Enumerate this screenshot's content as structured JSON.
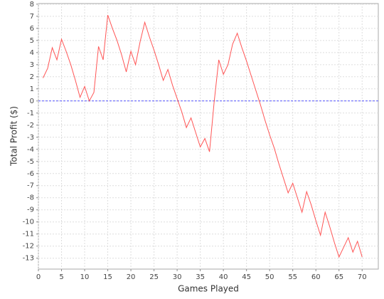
{
  "chart_data": {
    "type": "line",
    "x_label": "Games Played",
    "y_label": "Total Profit ($)",
    "x": [
      1,
      2,
      3,
      4,
      5,
      6,
      7,
      8,
      9,
      10,
      11,
      12,
      13,
      14,
      15,
      16,
      17,
      18,
      19,
      20,
      21,
      22,
      23,
      24,
      25,
      26,
      27,
      28,
      29,
      30,
      31,
      32,
      33,
      34,
      35,
      36,
      37,
      38,
      39,
      40,
      41,
      42,
      43,
      44,
      45,
      46,
      47,
      48,
      49,
      50,
      51,
      52,
      53,
      54,
      55,
      56,
      57,
      58,
      59,
      60,
      61,
      62,
      63,
      64,
      65,
      66,
      67,
      68,
      69,
      70
    ],
    "series": [
      {
        "name": "Total Profit",
        "color": "#ff5555",
        "values": [
          1.9,
          2.7,
          4.4,
          3.4,
          5.1,
          4.1,
          3.0,
          1.7,
          0.3,
          1.2,
          0.0,
          0.7,
          4.5,
          3.4,
          7.1,
          6.0,
          5.0,
          3.8,
          2.4,
          4.1,
          3.0,
          4.9,
          6.5,
          5.3,
          4.2,
          3.0,
          1.7,
          2.6,
          1.3,
          0.2,
          -0.9,
          -2.2,
          -1.4,
          -2.6,
          -3.8,
          -3.1,
          -4.2,
          -0.1,
          3.4,
          2.2,
          3.0,
          4.7,
          5.6,
          4.4,
          3.3,
          2.1,
          0.9,
          -0.3,
          -1.6,
          -2.8,
          -3.9,
          -5.2,
          -6.4,
          -7.6,
          -6.8,
          -8.0,
          -9.2,
          -7.5,
          -8.6,
          -9.9,
          -11.1,
          -9.2,
          -10.4,
          -11.7,
          -12.9,
          -12.1,
          -11.3,
          -12.5,
          -11.6,
          -12.9
        ]
      }
    ],
    "xlim": [
      0,
      73.5
    ],
    "xticks": [
      0,
      5,
      10,
      15,
      20,
      25,
      30,
      35,
      40,
      45,
      50,
      55,
      60,
      65,
      70
    ],
    "ylim": [
      -13.9,
      8.05
    ],
    "yticks": [
      -13,
      -12,
      -11,
      -10,
      -9,
      -8,
      -7,
      -6,
      -5,
      -4,
      -3,
      -2,
      -1,
      0,
      1,
      2,
      3,
      4,
      5,
      6,
      7,
      8
    ],
    "grid": true,
    "marker_y": 0,
    "marker_color": "#5555ff"
  }
}
